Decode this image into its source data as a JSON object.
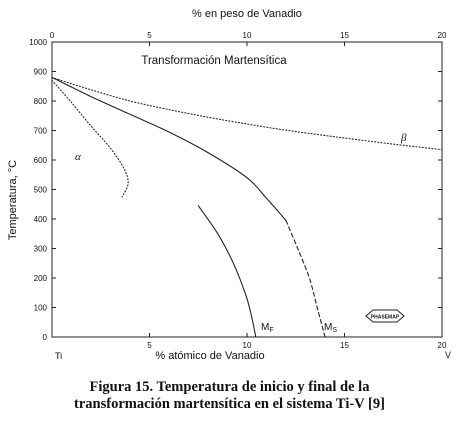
{
  "chart_data": {
    "type": "line",
    "title": "Transformación Martensítica",
    "xlabel_bottom": "% atómico de Vanadio",
    "xlabel_top": "% en peso de Vanadio",
    "ylabel": "Temperatura, °C",
    "xlim": [
      0,
      20
    ],
    "ylim": [
      0,
      1000
    ],
    "x_ticks_bottom": [
      0,
      5,
      10,
      15,
      20
    ],
    "x_tick_labels_bottom": [
      "0",
      "5",
      "10",
      "15",
      "20"
    ],
    "x_ticks_top": [
      0,
      5,
      10,
      15,
      20
    ],
    "x_tick_labels_top": [
      "0",
      "5",
      "10",
      "15",
      "20"
    ],
    "y_ticks": [
      0,
      100,
      200,
      300,
      400,
      500,
      600,
      700,
      800,
      900,
      1000
    ],
    "y_tick_labels": [
      "0",
      "100",
      "200",
      "300",
      "400",
      "500",
      "600",
      "700",
      "800",
      "900",
      "1000"
    ],
    "endpoint_labels": {
      "left": "Ti",
      "right": "V"
    },
    "phase_labels": [
      {
        "text": "α",
        "x": 1.2,
        "y": 600
      },
      {
        "text": "β",
        "x": 18.3,
        "y": 680
      }
    ],
    "series": [
      {
        "style": "dotted",
        "points": [
          [
            0,
            880
          ],
          [
            2,
            838
          ],
          [
            4,
            800
          ],
          [
            6,
            771
          ],
          [
            8,
            745
          ],
          [
            10,
            722
          ],
          [
            12,
            701
          ],
          [
            14,
            683
          ],
          [
            16,
            666
          ],
          [
            18,
            650
          ],
          [
            20,
            635
          ]
        ]
      },
      {
        "style": "dotted",
        "points": [
          [
            0,
            870
          ],
          [
            1,
            795
          ],
          [
            2,
            715
          ],
          [
            3,
            640
          ],
          [
            3.7,
            570
          ],
          [
            3.9,
            520
          ],
          [
            3.6,
            475
          ]
        ]
      },
      {
        "name": "Ms",
        "style": "solid-then-dashed",
        "points": [
          [
            0,
            880
          ],
          [
            2,
            815
          ],
          [
            4,
            755
          ],
          [
            6,
            695
          ],
          [
            8,
            625
          ],
          [
            10,
            540
          ],
          [
            11,
            470
          ],
          [
            12,
            395
          ],
          [
            12.6,
            300
          ],
          [
            13.2,
            200
          ],
          [
            13.6,
            100
          ],
          [
            14.0,
            0
          ]
        ]
      },
      {
        "name": "Mf",
        "style": "solid",
        "points": [
          [
            7.5,
            445
          ],
          [
            8.5,
            350
          ],
          [
            9.3,
            250
          ],
          [
            9.9,
            150
          ],
          [
            10.2,
            80
          ],
          [
            10.45,
            0
          ]
        ]
      }
    ],
    "curve_labels": [
      {
        "main": "M",
        "sub": "F"
      },
      {
        "main": "M",
        "sub": "S"
      }
    ],
    "logo": "PHASEMAP"
  },
  "caption": {
    "line1": "Figura 15. Temperatura de inicio y final de la",
    "line2": "transformación martensítica en el sistema Ti-V [9]"
  }
}
